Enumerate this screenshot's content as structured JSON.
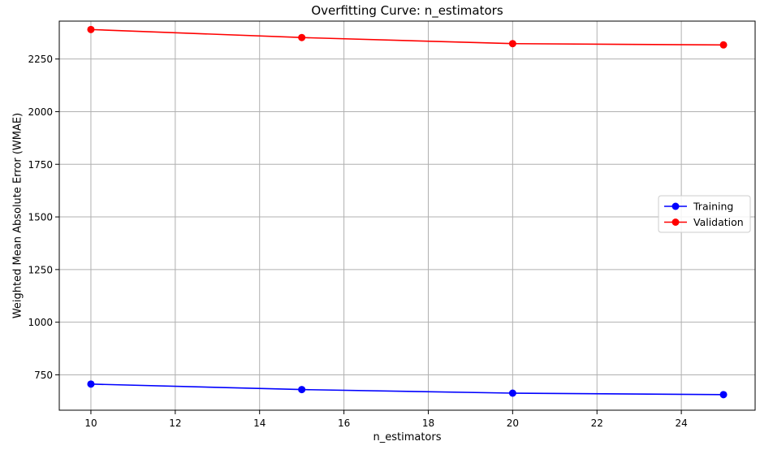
{
  "chart_data": {
    "type": "line",
    "title": "Overfitting Curve: n_estimators",
    "xlabel": "n_estimators",
    "ylabel": "Weighted Mean Absolute Error (WMAE)",
    "x": [
      10,
      15,
      20,
      25
    ],
    "xlim": [
      9.25,
      25.75
    ],
    "ylim": [
      582,
      2430
    ],
    "xticks": [
      10,
      12,
      14,
      16,
      18,
      20,
      22,
      24
    ],
    "yticks": [
      750,
      1000,
      1250,
      1500,
      1750,
      2000,
      2250
    ],
    "grid": true,
    "legend_position": "center-right",
    "series": [
      {
        "name": "Training",
        "color": "#0000ff",
        "marker": "circle",
        "values": [
          706,
          680,
          663,
          656
        ]
      },
      {
        "name": "Validation",
        "color": "#ff0000",
        "marker": "circle",
        "values": [
          2390,
          2352,
          2323,
          2317
        ]
      }
    ]
  }
}
